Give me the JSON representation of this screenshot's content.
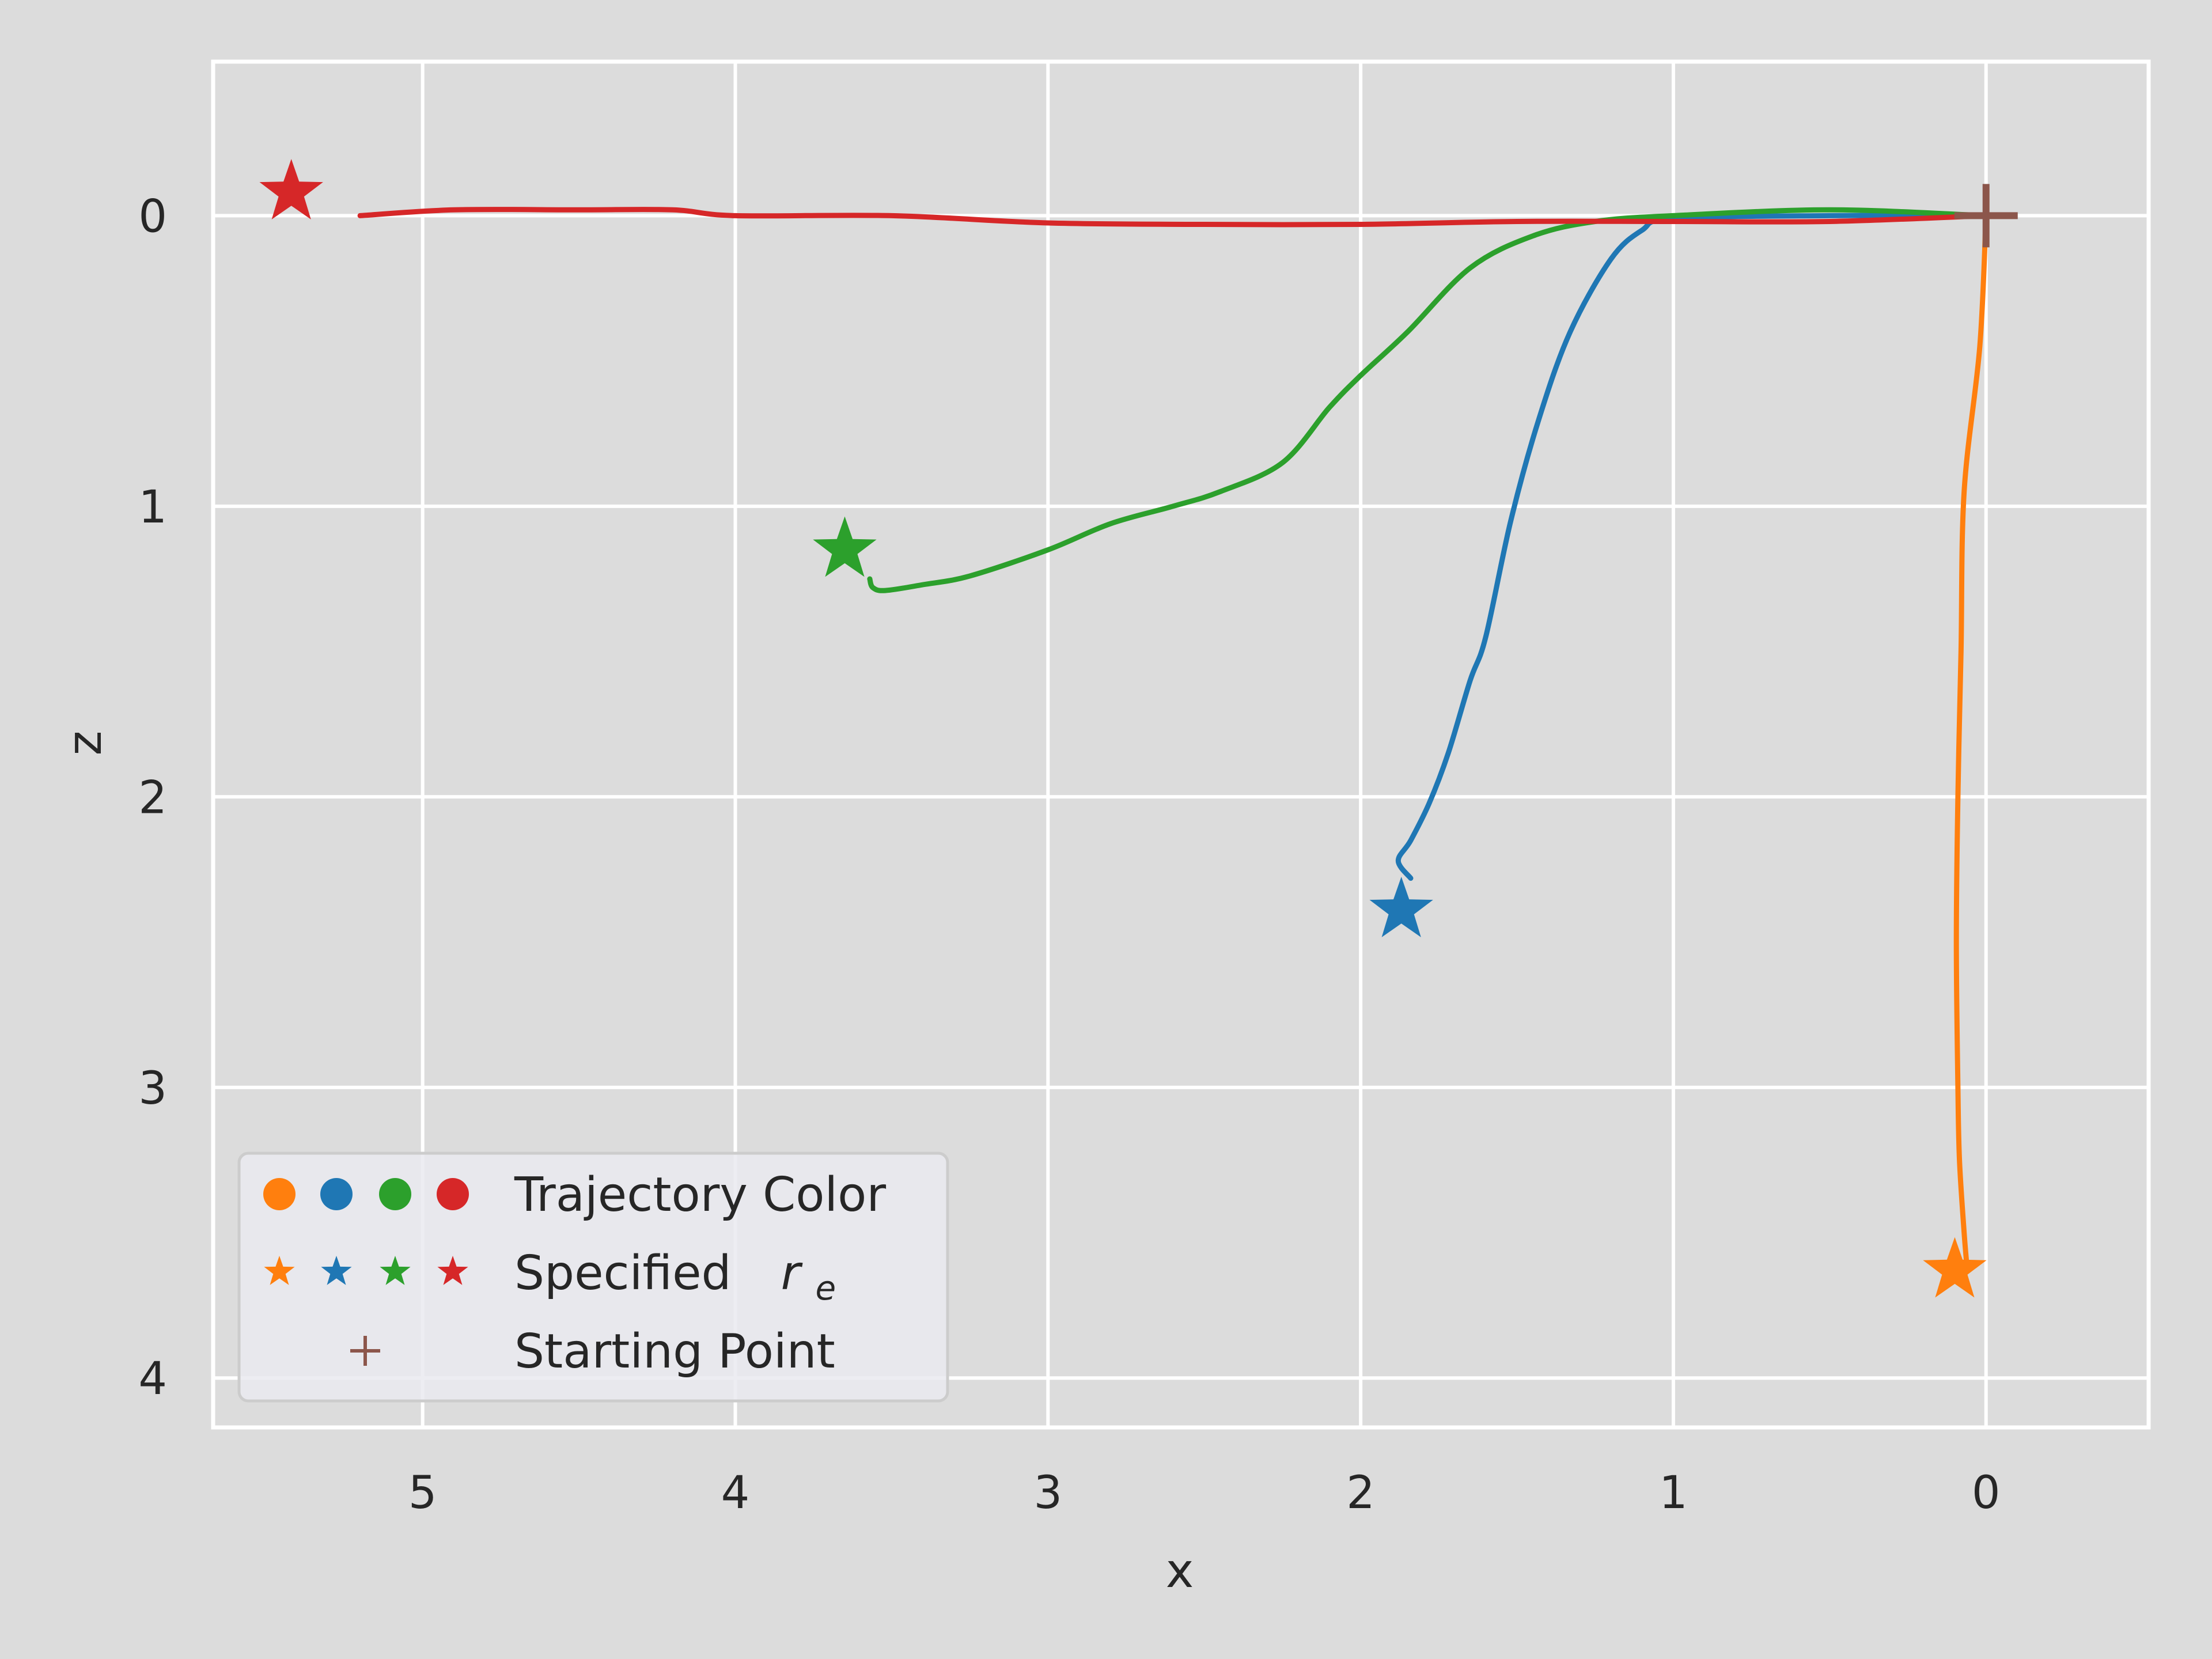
{
  "chart_data": {
    "type": "line",
    "xlabel": "x",
    "ylabel": "z",
    "xlim": [
      5.67,
      -0.52
    ],
    "ylim": [
      -0.53,
      4.17
    ],
    "x_inverted": true,
    "y_inverted": true,
    "x_ticks": [
      5,
      4,
      3,
      2,
      1,
      0
    ],
    "y_ticks": [
      0,
      1,
      2,
      3,
      4
    ],
    "grid": true,
    "legend_position": "bottom-left",
    "legend": {
      "trajectory_label": "Trajectory Color",
      "target_label": "Specified",
      "target_symbol": "r",
      "target_subscript": "e",
      "start_label": "Starting Point"
    },
    "start_point": {
      "x": 0.0,
      "y": 0.0,
      "color": "#8c564b"
    },
    "series": [
      {
        "color": "#ff7f0e",
        "target": {
          "x": 0.1,
          "y": 3.63
        },
        "points": [
          [
            0.0,
            0.0
          ],
          [
            0.02,
            0.45
          ],
          [
            0.07,
            0.95
          ],
          [
            0.08,
            1.5
          ],
          [
            0.09,
            2.0
          ],
          [
            0.095,
            2.5
          ],
          [
            0.09,
            3.0
          ],
          [
            0.085,
            3.25
          ],
          [
            0.07,
            3.5
          ],
          [
            0.06,
            3.63
          ]
        ]
      },
      {
        "color": "#1f77b4",
        "target": {
          "x": 1.87,
          "y": 2.39
        },
        "points": [
          [
            0.0,
            0.0
          ],
          [
            0.5,
            0.0
          ],
          [
            1.0,
            0.01
          ],
          [
            1.1,
            0.05
          ],
          [
            1.2,
            0.15
          ],
          [
            1.33,
            0.4
          ],
          [
            1.43,
            0.7
          ],
          [
            1.52,
            1.05
          ],
          [
            1.6,
            1.45
          ],
          [
            1.65,
            1.6
          ],
          [
            1.72,
            1.85
          ],
          [
            1.78,
            2.02
          ],
          [
            1.84,
            2.15
          ],
          [
            1.88,
            2.22
          ],
          [
            1.84,
            2.28
          ]
        ]
      },
      {
        "color": "#2ca02c",
        "target": {
          "x": 3.65,
          "y": 1.15
        },
        "points": [
          [
            0.0,
            0.0
          ],
          [
            0.5,
            -0.02
          ],
          [
            1.0,
            0.0
          ],
          [
            1.25,
            0.02
          ],
          [
            1.45,
            0.07
          ],
          [
            1.65,
            0.18
          ],
          [
            1.85,
            0.4
          ],
          [
            2.0,
            0.55
          ],
          [
            2.1,
            0.66
          ],
          [
            2.25,
            0.85
          ],
          [
            2.45,
            0.95
          ],
          [
            2.6,
            1.0
          ],
          [
            2.8,
            1.06
          ],
          [
            3.0,
            1.15
          ],
          [
            3.25,
            1.24
          ],
          [
            3.4,
            1.27
          ],
          [
            3.52,
            1.29
          ],
          [
            3.56,
            1.28
          ],
          [
            3.57,
            1.25
          ]
        ]
      },
      {
        "color": "#d62728",
        "target": {
          "x": 5.42,
          "y": -0.08
        },
        "points": [
          [
            0.0,
            0.0
          ],
          [
            0.5,
            0.02
          ],
          [
            1.0,
            0.02
          ],
          [
            1.5,
            0.02
          ],
          [
            2.0,
            0.03
          ],
          [
            2.5,
            0.03
          ],
          [
            3.0,
            0.025
          ],
          [
            3.5,
            0.0
          ],
          [
            4.0,
            0.0
          ],
          [
            4.2,
            -0.02
          ],
          [
            4.5,
            -0.02
          ],
          [
            4.9,
            -0.02
          ],
          [
            5.2,
            0.0
          ]
        ]
      }
    ]
  }
}
